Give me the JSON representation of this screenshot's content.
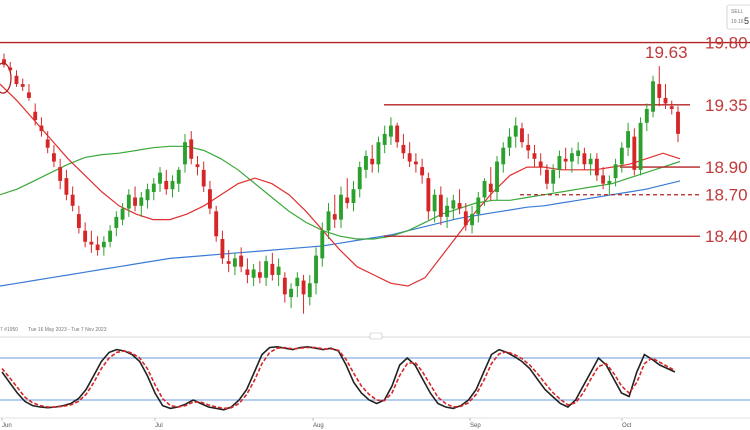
{
  "header": {
    "action_label": "SELL",
    "price_main": "19.16",
    "price_suffix": "5"
  },
  "range_text": "Tue 16 May 2023 - Tue 7 Nov 2023",
  "range_prefix": "7 #1950",
  "colors": {
    "up": "#2ca02c",
    "down": "#d62728",
    "level": "#b22222",
    "ma_fast": "#e03030",
    "ma_mid": "#3aa83a",
    "ma_slow": "#3a7bd5",
    "stoch_k": "#222222",
    "stoch_d": "#d62728",
    "stoch_band": "#3a7bd5"
  },
  "chart_data": [
    {
      "type": "candlestick",
      "x_ticks": [
        "Jun",
        "Jul",
        "Aug",
        "Sep",
        "Oct"
      ],
      "levels": [
        {
          "label": "19.80",
          "value": 19.8,
          "style": "solid"
        },
        {
          "label": "19.35",
          "value": 19.35,
          "style": "solid"
        },
        {
          "label": "18.90",
          "value": 18.9,
          "style": "solid"
        },
        {
          "label": "18.70",
          "value": 18.7,
          "style": "dashed"
        },
        {
          "label": "18.40",
          "value": 18.4,
          "style": "solid"
        }
      ],
      "annotation": {
        "label": "19.63",
        "value": 19.63
      },
      "ylim": [
        17.78,
        20.05
      ],
      "candles": [
        [
          19.68,
          19.72,
          19.62,
          19.64
        ],
        [
          19.62,
          19.66,
          19.58,
          19.6
        ],
        [
          19.56,
          19.6,
          19.48,
          19.5
        ],
        [
          19.5,
          19.54,
          19.45,
          19.48
        ],
        [
          19.44,
          19.5,
          19.38,
          19.4
        ],
        [
          19.3,
          19.36,
          19.2,
          19.24
        ],
        [
          19.2,
          19.26,
          19.12,
          19.16
        ],
        [
          19.1,
          19.16,
          19.0,
          19.04
        ],
        [
          19.0,
          19.06,
          18.9,
          18.94
        ],
        [
          18.9,
          18.96,
          18.74,
          18.8
        ],
        [
          18.82,
          18.88,
          18.66,
          18.7
        ],
        [
          18.7,
          18.76,
          18.58,
          18.62
        ],
        [
          18.56,
          18.62,
          18.42,
          18.46
        ],
        [
          18.44,
          18.5,
          18.32,
          18.36
        ],
        [
          18.36,
          18.44,
          18.28,
          18.34
        ],
        [
          18.34,
          18.4,
          18.26,
          18.3
        ],
        [
          18.32,
          18.4,
          18.26,
          18.36
        ],
        [
          18.36,
          18.48,
          18.32,
          18.44
        ],
        [
          18.46,
          18.58,
          18.4,
          18.54
        ],
        [
          18.52,
          18.64,
          18.48,
          18.6
        ],
        [
          18.6,
          18.74,
          18.54,
          18.7
        ],
        [
          18.68,
          18.76,
          18.58,
          18.62
        ],
        [
          18.62,
          18.72,
          18.54,
          18.68
        ],
        [
          18.66,
          18.78,
          18.6,
          18.74
        ],
        [
          18.72,
          18.82,
          18.66,
          18.78
        ],
        [
          18.78,
          18.9,
          18.72,
          18.86
        ],
        [
          18.8,
          18.88,
          18.7,
          18.74
        ],
        [
          18.74,
          18.84,
          18.68,
          18.8
        ],
        [
          18.78,
          18.9,
          18.72,
          18.88
        ],
        [
          18.92,
          19.14,
          18.86,
          19.08
        ],
        [
          19.1,
          19.16,
          18.92,
          18.96
        ],
        [
          18.92,
          18.98,
          18.84,
          18.9
        ],
        [
          18.88,
          18.94,
          18.72,
          18.76
        ],
        [
          18.74,
          18.8,
          18.56,
          18.6
        ],
        [
          18.58,
          18.62,
          18.36,
          18.4
        ],
        [
          18.38,
          18.44,
          18.2,
          18.24
        ],
        [
          18.22,
          18.3,
          18.14,
          18.2
        ],
        [
          18.18,
          18.28,
          18.12,
          18.24
        ],
        [
          18.26,
          18.32,
          18.14,
          18.18
        ],
        [
          18.16,
          18.24,
          18.06,
          18.12
        ],
        [
          18.1,
          18.2,
          18.04,
          18.16
        ],
        [
          18.14,
          18.22,
          18.06,
          18.1
        ],
        [
          18.1,
          18.26,
          18.04,
          18.22
        ],
        [
          18.2,
          18.28,
          18.08,
          18.12
        ],
        [
          18.12,
          18.24,
          18.04,
          18.18
        ],
        [
          18.1,
          18.14,
          17.92,
          17.98
        ],
        [
          17.96,
          18.06,
          17.88,
          18.02
        ],
        [
          18.04,
          18.14,
          17.96,
          18.1
        ],
        [
          18.08,
          18.12,
          17.84,
          17.98
        ],
        [
          17.96,
          18.12,
          17.9,
          18.06
        ],
        [
          18.06,
          18.32,
          17.98,
          18.26
        ],
        [
          18.24,
          18.5,
          18.18,
          18.44
        ],
        [
          18.44,
          18.64,
          18.38,
          18.58
        ],
        [
          18.56,
          18.7,
          18.46,
          18.52
        ],
        [
          18.52,
          18.76,
          18.46,
          18.7
        ],
        [
          18.68,
          18.82,
          18.6,
          18.64
        ],
        [
          18.64,
          18.8,
          18.58,
          18.74
        ],
        [
          18.74,
          18.94,
          18.68,
          18.9
        ],
        [
          18.88,
          19.02,
          18.82,
          18.98
        ],
        [
          18.96,
          19.06,
          18.86,
          18.92
        ],
        [
          18.92,
          19.12,
          18.86,
          19.08
        ],
        [
          19.06,
          19.2,
          19.0,
          19.14
        ],
        [
          19.12,
          19.26,
          19.06,
          19.2
        ],
        [
          19.2,
          19.22,
          19.04,
          19.08
        ],
        [
          19.06,
          19.14,
          18.96,
          19.0
        ],
        [
          19.0,
          19.08,
          18.9,
          18.94
        ],
        [
          18.94,
          19.0,
          18.86,
          18.92
        ],
        [
          18.9,
          18.96,
          18.78,
          18.84
        ],
        [
          18.82,
          18.86,
          18.52,
          18.58
        ],
        [
          18.58,
          18.74,
          18.5,
          18.7
        ],
        [
          18.7,
          18.76,
          18.48,
          18.54
        ],
        [
          18.54,
          18.68,
          18.46,
          18.62
        ],
        [
          18.6,
          18.7,
          18.52,
          18.66
        ],
        [
          18.64,
          18.74,
          18.56,
          18.6
        ],
        [
          18.58,
          18.64,
          18.44,
          18.48
        ],
        [
          18.48,
          18.62,
          18.42,
          18.56
        ],
        [
          18.56,
          18.72,
          18.5,
          18.68
        ],
        [
          18.68,
          18.82,
          18.62,
          18.8
        ],
        [
          18.78,
          18.9,
          18.66,
          18.72
        ],
        [
          18.72,
          18.98,
          18.66,
          18.94
        ],
        [
          18.92,
          19.08,
          18.86,
          19.04
        ],
        [
          19.04,
          19.18,
          18.98,
          19.12
        ],
        [
          19.12,
          19.26,
          19.04,
          19.2
        ],
        [
          19.18,
          19.22,
          19.04,
          19.08
        ],
        [
          19.06,
          19.14,
          18.96,
          19.02
        ],
        [
          19.0,
          19.06,
          18.9,
          18.96
        ],
        [
          18.94,
          19.0,
          18.84,
          18.9
        ],
        [
          18.88,
          18.92,
          18.74,
          18.78
        ],
        [
          18.78,
          18.92,
          18.72,
          18.88
        ],
        [
          18.88,
          19.02,
          18.82,
          18.98
        ],
        [
          18.96,
          19.04,
          18.88,
          18.94
        ],
        [
          18.94,
          19.04,
          18.86,
          19.0
        ],
        [
          18.98,
          19.08,
          18.92,
          19.02
        ],
        [
          19.0,
          19.04,
          18.88,
          18.92
        ],
        [
          18.92,
          19.0,
          18.84,
          18.96
        ],
        [
          18.96,
          19.0,
          18.8,
          18.84
        ],
        [
          18.84,
          18.9,
          18.74,
          18.78
        ],
        [
          18.78,
          18.84,
          18.7,
          18.8
        ],
        [
          18.82,
          18.96,
          18.76,
          18.92
        ],
        [
          18.92,
          19.08,
          18.86,
          19.04
        ],
        [
          19.04,
          19.22,
          18.98,
          19.16
        ],
        [
          19.12,
          19.18,
          18.84,
          18.88
        ],
        [
          18.88,
          19.26,
          18.84,
          19.22
        ],
        [
          19.22,
          19.36,
          19.16,
          19.32
        ],
        [
          19.3,
          19.56,
          19.26,
          19.52
        ],
        [
          19.5,
          19.63,
          19.34,
          19.4
        ],
        [
          19.4,
          19.5,
          19.32,
          19.36
        ],
        [
          19.34,
          19.38,
          19.28,
          19.32
        ],
        [
          19.3,
          19.34,
          19.08,
          19.14
        ]
      ],
      "ma_fast": [
        19.5,
        19.38,
        19.24,
        19.1,
        18.96,
        18.84,
        18.72,
        18.62,
        18.56,
        18.52,
        18.52,
        18.56,
        18.62,
        18.7,
        18.78,
        18.82,
        18.78,
        18.7,
        18.58,
        18.44,
        18.3,
        18.18,
        18.12,
        18.06,
        18.04,
        18.1,
        18.26,
        18.42,
        18.58,
        18.72,
        18.84,
        18.9,
        18.9,
        18.88,
        18.88,
        18.88,
        18.9,
        18.92,
        18.96,
        19.0,
        18.96
      ],
      "ma_mid": [
        18.7,
        18.74,
        18.8,
        18.86,
        18.92,
        18.97,
        18.99,
        19.0,
        19.02,
        19.04,
        19.05,
        19.05,
        19.02,
        18.96,
        18.88,
        18.78,
        18.68,
        18.58,
        18.5,
        18.44,
        18.4,
        18.38,
        18.38,
        18.4,
        18.44,
        18.5,
        18.56,
        18.6,
        18.64,
        18.66,
        18.66,
        18.68,
        18.7,
        18.72,
        18.74,
        18.76,
        18.78,
        18.82,
        18.86,
        18.9,
        18.94
      ],
      "ma_slow": [
        18.04,
        18.06,
        18.08,
        18.1,
        18.12,
        18.14,
        18.16,
        18.18,
        18.2,
        18.22,
        18.24,
        18.25,
        18.26,
        18.27,
        18.28,
        18.29,
        18.3,
        18.31,
        18.32,
        18.33,
        18.35,
        18.37,
        18.39,
        18.41,
        18.44,
        18.47,
        18.5,
        18.53,
        18.55,
        18.57,
        18.59,
        18.61,
        18.62,
        18.64,
        18.66,
        18.68,
        18.7,
        18.72,
        18.74,
        18.77,
        18.8
      ]
    },
    {
      "type": "line",
      "name": "",
      "ylim": [
        0,
        100
      ],
      "bands": [
        80,
        20
      ],
      "series": [
        {
          "name": "",
          "values": [
            60,
            45,
            30,
            18,
            12,
            10,
            9,
            10,
            12,
            15,
            22,
            35,
            55,
            75,
            88,
            92,
            90,
            85,
            75,
            55,
            30,
            12,
            8,
            10,
            14,
            20,
            15,
            10,
            8,
            6,
            10,
            20,
            35,
            60,
            85,
            95,
            96,
            94,
            92,
            95,
            96,
            94,
            92,
            94,
            90,
            70,
            45,
            30,
            20,
            15,
            20,
            40,
            70,
            80,
            70,
            50,
            30,
            15,
            10,
            8,
            12,
            20,
            35,
            60,
            85,
            92,
            88,
            82,
            75,
            65,
            50,
            35,
            25,
            15,
            10,
            20,
            40,
            60,
            80,
            70,
            50,
            30,
            25,
            60,
            85,
            78,
            70,
            65,
            60
          ]
        },
        {
          "name": "",
          "values": [
            65,
            52,
            38,
            24,
            16,
            12,
            10,
            10,
            11,
            13,
            18,
            28,
            45,
            65,
            80,
            88,
            90,
            87,
            80,
            65,
            42,
            22,
            12,
            10,
            12,
            17,
            17,
            13,
            10,
            8,
            9,
            15,
            28,
            48,
            72,
            88,
            94,
            95,
            93,
            94,
            95,
            95,
            93,
            93,
            91,
            78,
            58,
            40,
            28,
            20,
            19,
            30,
            55,
            72,
            74,
            60,
            42,
            24,
            15,
            10,
            11,
            16,
            28,
            48,
            72,
            86,
            89,
            85,
            79,
            70,
            58,
            44,
            31,
            21,
            13,
            16,
            30,
            50,
            68,
            72,
            58,
            40,
            30,
            45,
            72,
            80,
            74,
            68,
            62
          ]
        }
      ]
    }
  ]
}
